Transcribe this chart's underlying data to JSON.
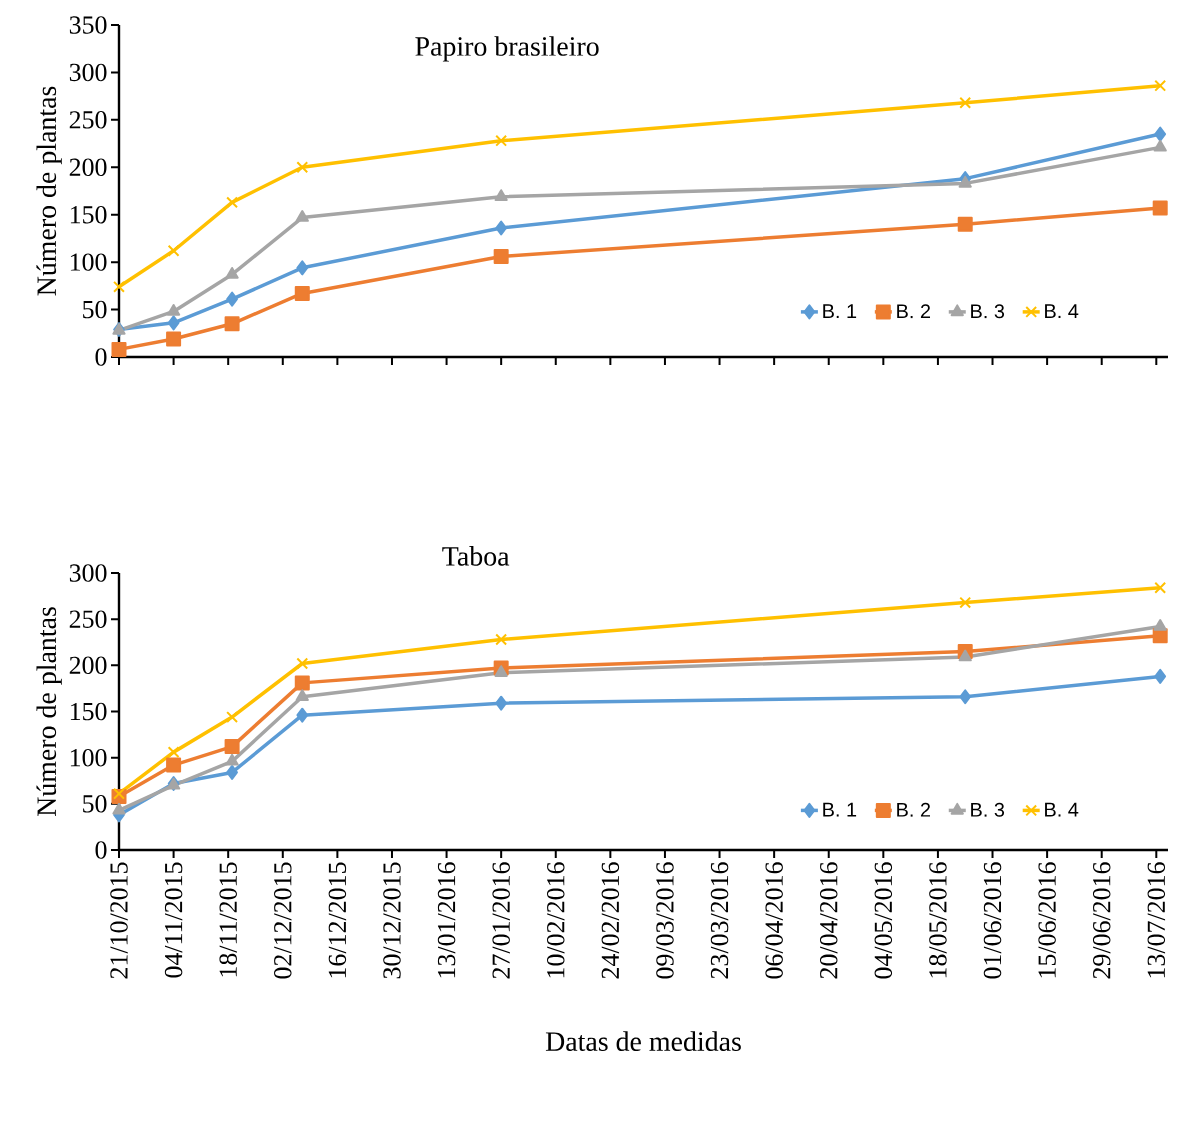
{
  "chart_data": [
    {
      "type": "line",
      "title": "Papiro brasileiro",
      "ylabel": "Número de plantas",
      "x": [
        "2015-10-21",
        "2015-11-04",
        "2015-11-19",
        "2015-12-07",
        "2016-01-27",
        "2016-05-25",
        "2016-07-14"
      ],
      "series": [
        {
          "name": "B. 1",
          "color": "#5b9bd5",
          "marker": "diamond",
          "values": [
            29,
            36,
            61,
            94,
            136,
            188,
            235
          ]
        },
        {
          "name": "B. 2",
          "color": "#ed7d31",
          "marker": "square",
          "values": [
            8,
            19,
            35,
            67,
            106,
            140,
            157
          ]
        },
        {
          "name": "B. 3",
          "color": "#a5a5a5",
          "marker": "triangle",
          "values": [
            28,
            48,
            87,
            147,
            169,
            183,
            221
          ]
        },
        {
          "name": "B. 4",
          "color": "#ffc000",
          "marker": "cross",
          "values": [
            74,
            112,
            163,
            200,
            228,
            268,
            286
          ]
        }
      ],
      "xlim": [
        "2015-10-21",
        "2016-07-16"
      ],
      "xticks": [
        {
          "value": "2015-10-21",
          "label": null
        },
        {
          "value": "2015-11-04",
          "label": null
        },
        {
          "value": "2015-11-18",
          "label": null
        },
        {
          "value": "2015-12-02",
          "label": null
        },
        {
          "value": "2015-12-16",
          "label": null
        },
        {
          "value": "2015-12-30",
          "label": null
        },
        {
          "value": "2016-01-13",
          "label": null
        },
        {
          "value": "2016-01-27",
          "label": null
        },
        {
          "value": "2016-02-10",
          "label": null
        },
        {
          "value": "2016-02-24",
          "label": null
        },
        {
          "value": "2016-03-09",
          "label": null
        },
        {
          "value": "2016-03-23",
          "label": null
        },
        {
          "value": "2016-04-06",
          "label": null
        },
        {
          "value": "2016-04-20",
          "label": null
        },
        {
          "value": "2016-05-04",
          "label": null
        },
        {
          "value": "2016-05-18",
          "label": null
        },
        {
          "value": "2016-06-01",
          "label": null
        },
        {
          "value": "2016-06-15",
          "label": null
        },
        {
          "value": "2016-06-29",
          "label": null
        },
        {
          "value": "2016-07-13",
          "label": null
        }
      ],
      "ylim": [
        0,
        350
      ],
      "yticks": [
        0,
        50,
        100,
        150,
        200,
        250,
        300,
        350
      ],
      "tick_labels": "y",
      "legend": "bottom right"
    },
    {
      "type": "line",
      "title": "Taboa",
      "xlabel": "Datas de medidas",
      "ylabel": "Número de plantas",
      "x": [
        "2015-10-21",
        "2015-11-04",
        "2015-11-19",
        "2015-12-07",
        "2016-01-27",
        "2016-05-25",
        "2016-07-14"
      ],
      "series": [
        {
          "name": "B. 1",
          "color": "#5b9bd5",
          "marker": "diamond",
          "values": [
            38,
            72,
            84,
            146,
            159,
            166,
            188
          ]
        },
        {
          "name": "B. 2",
          "color": "#ed7d31",
          "marker": "square",
          "values": [
            58,
            92,
            112,
            181,
            197,
            215,
            232
          ]
        },
        {
          "name": "B. 3",
          "color": "#a5a5a5",
          "marker": "triangle",
          "values": [
            43,
            70,
            96,
            166,
            192,
            209,
            242
          ]
        },
        {
          "name": "B. 4",
          "color": "#ffc000",
          "marker": "cross",
          "values": [
            61,
            106,
            144,
            202,
            228,
            268,
            284
          ]
        }
      ],
      "xlim": [
        "2015-10-21",
        "2016-07-16"
      ],
      "xticks": [
        {
          "value": "2015-10-21",
          "label": "21/10/2015"
        },
        {
          "value": "2015-11-04",
          "label": "04/11/2015"
        },
        {
          "value": "2015-11-18",
          "label": "18/11/2015"
        },
        {
          "value": "2015-12-02",
          "label": "02/12/2015"
        },
        {
          "value": "2015-12-16",
          "label": "16/12/2015"
        },
        {
          "value": "2015-12-30",
          "label": "30/12/2015"
        },
        {
          "value": "2016-01-13",
          "label": "13/01/2016"
        },
        {
          "value": "2016-01-27",
          "label": "27/01/2016"
        },
        {
          "value": "2016-02-10",
          "label": "10/02/2016"
        },
        {
          "value": "2016-02-24",
          "label": "24/02/2016"
        },
        {
          "value": "2016-03-09",
          "label": "09/03/2016"
        },
        {
          "value": "2016-03-23",
          "label": "23/03/2016"
        },
        {
          "value": "2016-04-06",
          "label": "06/04/2016"
        },
        {
          "value": "2016-04-20",
          "label": "20/04/2016"
        },
        {
          "value": "2016-05-04",
          "label": "04/05/2016"
        },
        {
          "value": "2016-05-18",
          "label": "18/05/2016"
        },
        {
          "value": "2016-06-01",
          "label": "01/06/2016"
        },
        {
          "value": "2016-06-15",
          "label": "15/06/2016"
        },
        {
          "value": "2016-06-29",
          "label": "29/06/2016"
        },
        {
          "value": "2016-07-13",
          "label": "13/07/2016"
        }
      ],
      "ylim": [
        0,
        300
      ],
      "yticks": [
        0,
        50,
        100,
        150,
        200,
        250,
        300
      ],
      "legend": "bottom right"
    }
  ]
}
